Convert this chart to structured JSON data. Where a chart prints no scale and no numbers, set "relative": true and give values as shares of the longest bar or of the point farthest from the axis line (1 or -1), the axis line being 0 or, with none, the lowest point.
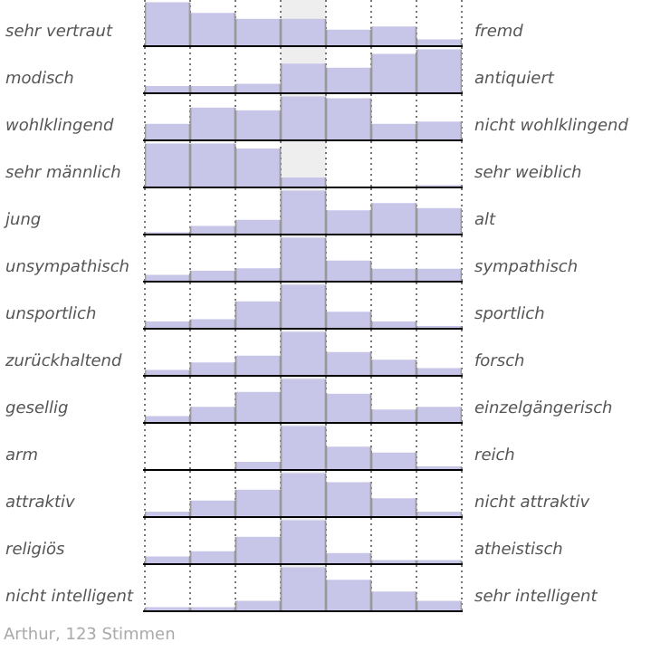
{
  "chart_data": [
    {
      "type": "bar",
      "ylabel": "sehr vertraut",
      "y2label": "fremd",
      "categories": [
        null,
        null,
        null,
        null,
        null,
        null,
        null
      ],
      "values": [
        1,
        0.76,
        0.63,
        0.63,
        0.39,
        0.46,
        0.17
      ],
      "color": "#c8c6e8",
      "relative": true,
      "grid": "x"
    },
    {
      "type": "bar",
      "ylabel": "modisch",
      "y2label": "antiquiert",
      "categories": [
        null,
        null,
        null,
        null,
        null,
        null,
        null
      ],
      "values": [
        0.18,
        0.18,
        0.23,
        0.68,
        0.59,
        0.9,
        1
      ],
      "color": "#c8c6e8",
      "relative": true,
      "grid": "x"
    },
    {
      "type": "bar",
      "ylabel": "wohlklingend",
      "y2label": "nicht wohlklingend",
      "categories": [
        null,
        null,
        null,
        null,
        null,
        null,
        null
      ],
      "values": [
        0.39,
        0.75,
        0.69,
        1,
        0.96,
        0.39,
        0.44
      ],
      "color": "#c8c6e8",
      "relative": true,
      "grid": "x"
    },
    {
      "type": "bar",
      "ylabel": "sehr männlich",
      "y2label": "sehr weiblich",
      "categories": [
        null,
        null,
        null,
        null,
        null,
        null,
        null
      ],
      "values": [
        1,
        1,
        0.89,
        0.24,
        0,
        0,
        0.07
      ],
      "color": "#c8c6e8",
      "relative": true,
      "grid": "x"
    },
    {
      "type": "bar",
      "ylabel": "jung",
      "y2label": "alt",
      "categories": [
        null,
        null,
        null,
        null,
        null,
        null,
        null
      ],
      "values": [
        0.07,
        0.21,
        0.35,
        1,
        0.56,
        0.72,
        0.61
      ],
      "color": "#c8c6e8",
      "relative": true,
      "grid": "x"
    },
    {
      "type": "bar",
      "ylabel": "unsympathisch",
      "y2label": "sympathisch",
      "categories": [
        null,
        null,
        null,
        null,
        null,
        null,
        null
      ],
      "values": [
        0.17,
        0.26,
        0.32,
        1,
        0.49,
        0.31,
        0.31
      ],
      "color": "#c8c6e8",
      "relative": true,
      "grid": "x"
    },
    {
      "type": "bar",
      "ylabel": "unsportlich",
      "y2label": "sportlich",
      "categories": [
        null,
        null,
        null,
        null,
        null,
        null,
        null
      ],
      "values": [
        0.18,
        0.23,
        0.63,
        1,
        0.4,
        0.18,
        0.08
      ],
      "color": "#c8c6e8",
      "relative": true,
      "grid": "x"
    },
    {
      "type": "bar",
      "ylabel": "zurückhaltend",
      "y2label": "forsch",
      "categories": [
        null,
        null,
        null,
        null,
        null,
        null,
        null
      ],
      "values": [
        0.15,
        0.32,
        0.47,
        1,
        0.55,
        0.38,
        0.19
      ],
      "color": "#c8c6e8",
      "relative": true,
      "grid": "x"
    },
    {
      "type": "bar",
      "ylabel": "gesellig",
      "y2label": "einzelgängerisch",
      "categories": [
        null,
        null,
        null,
        null,
        null,
        null,
        null
      ],
      "values": [
        0.17,
        0.38,
        0.71,
        1,
        0.67,
        0.32,
        0.38
      ],
      "color": "#c8c6e8",
      "relative": true,
      "grid": "x"
    },
    {
      "type": "bar",
      "ylabel": "arm",
      "y2label": "reich",
      "categories": [
        null,
        null,
        null,
        null,
        null,
        null,
        null
      ],
      "values": [
        0,
        0,
        0.2,
        1,
        0.54,
        0.41,
        0.1
      ],
      "color": "#c8c6e8",
      "relative": true,
      "grid": "x"
    },
    {
      "type": "bar",
      "ylabel": "attraktiv",
      "y2label": "nicht attraktiv",
      "categories": [
        null,
        null,
        null,
        null,
        null,
        null,
        null
      ],
      "values": [
        0.14,
        0.39,
        0.63,
        1,
        0.8,
        0.44,
        0.14
      ],
      "color": "#c8c6e8",
      "relative": true,
      "grid": "x"
    },
    {
      "type": "bar",
      "ylabel": "religiös",
      "y2label": "atheistisch",
      "categories": [
        null,
        null,
        null,
        null,
        null,
        null,
        null
      ],
      "values": [
        0.19,
        0.31,
        0.63,
        1,
        0.27,
        0.11,
        0.11
      ],
      "color": "#c8c6e8",
      "relative": true,
      "grid": "x"
    },
    {
      "type": "bar",
      "ylabel": "nicht intelligent",
      "y2label": "sehr intelligent",
      "categories": [
        null,
        null,
        null,
        null,
        null,
        null,
        null
      ],
      "values": [
        0.11,
        0.11,
        0.25,
        1,
        0.72,
        0.46,
        0.25
      ],
      "color": "#c8c6e8",
      "relative": true,
      "grid": "x",
      "annotations": [
        "Arthur, 123 Stimmen"
      ]
    }
  ]
}
